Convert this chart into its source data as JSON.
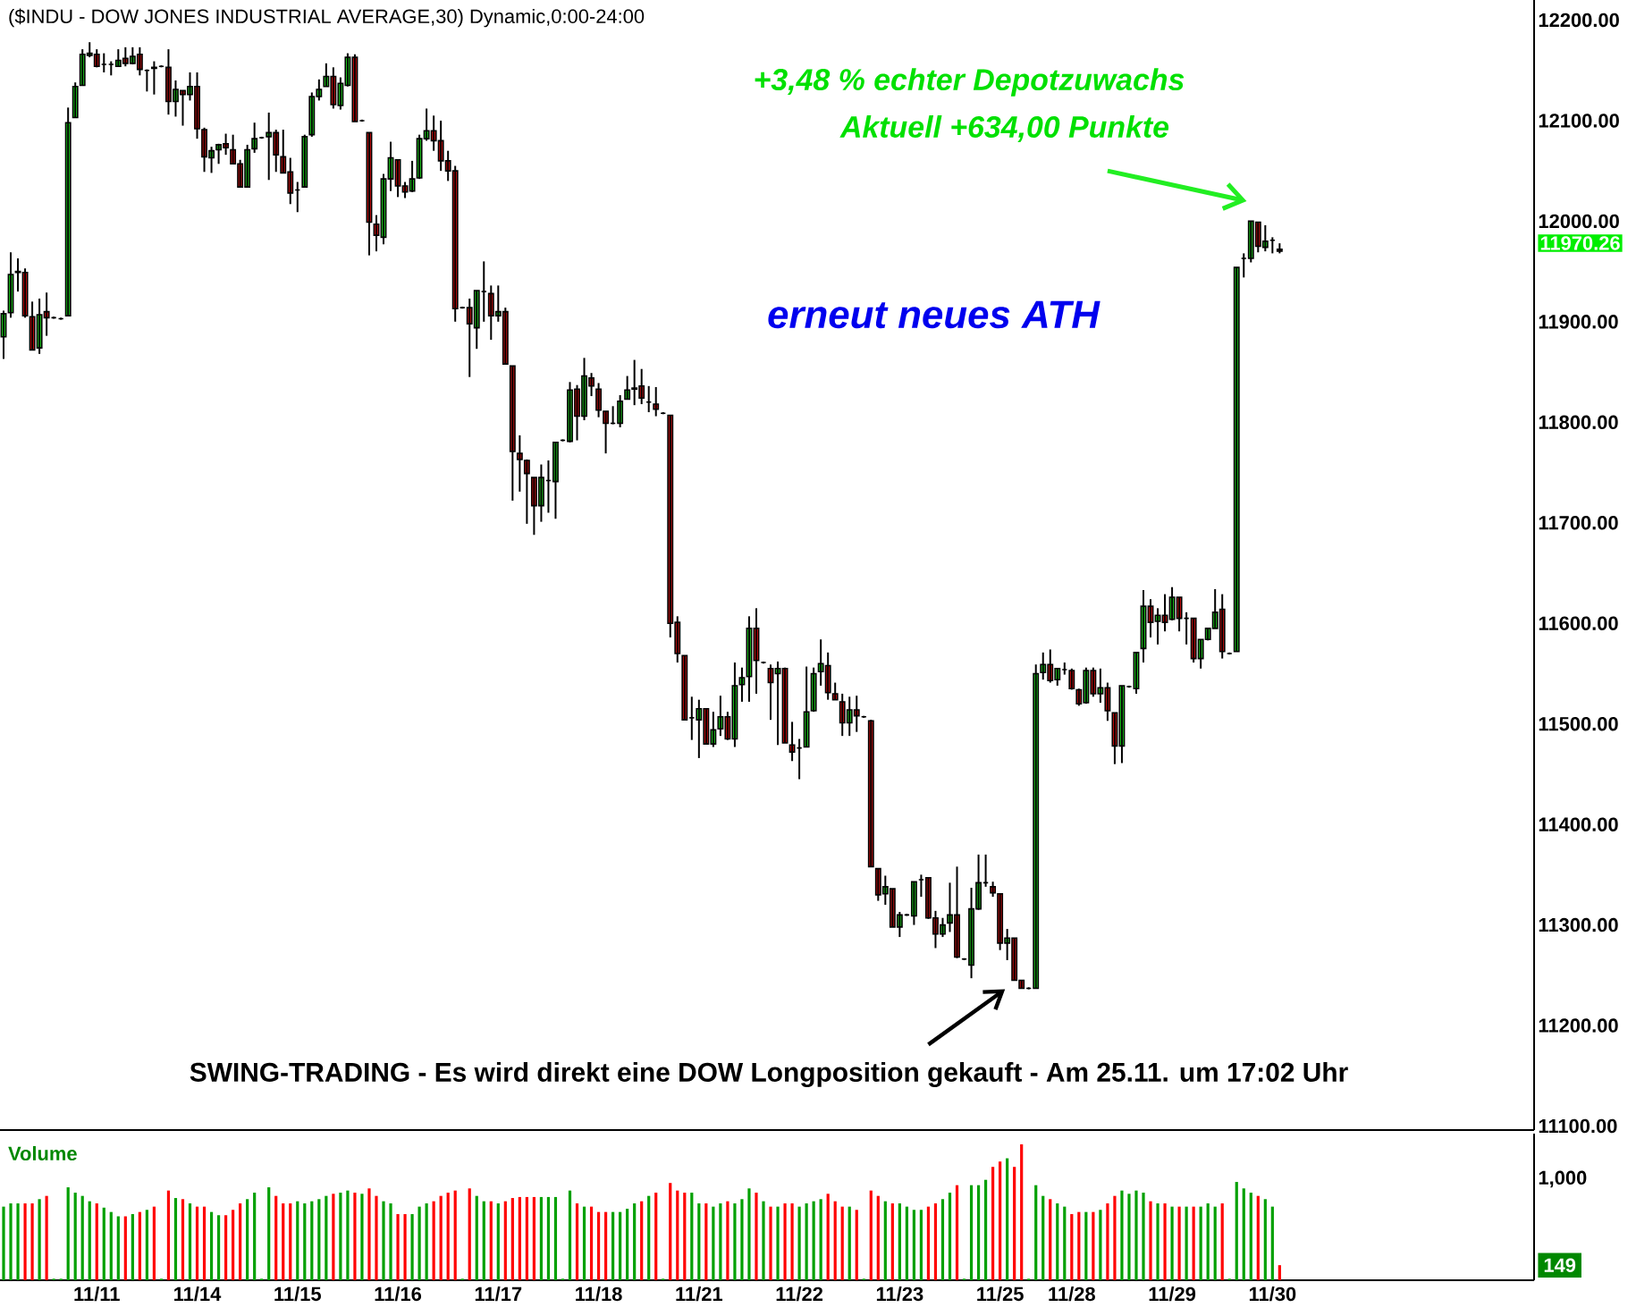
{
  "chart_data": [
    {
      "type": "candlestick",
      "title": "($INDU - DOW JONES INDUSTRIAL AVERAGE,30) Dynamic,0:00-24:00",
      "categories": [
        null,
        null,
        null,
        null,
        null,
        null,
        null,
        null,
        null,
        null,
        null,
        null,
        null,
        null,
        null,
        null,
        null,
        null,
        null,
        null,
        null,
        null,
        null,
        null,
        null,
        null,
        null,
        null,
        null,
        null,
        null,
        null,
        null,
        null,
        null,
        null,
        null,
        null,
        null,
        null,
        null,
        null,
        null,
        null,
        null,
        null,
        null,
        null,
        null,
        null,
        null,
        null,
        null,
        null,
        null,
        null,
        null,
        null,
        null,
        null,
        null,
        null,
        null,
        null,
        null,
        null,
        null,
        null,
        null,
        null,
        null,
        null,
        null,
        null,
        null,
        null,
        null,
        null,
        null,
        null,
        null,
        null,
        null,
        null,
        null,
        null,
        null,
        null,
        null,
        null,
        null,
        null,
        null,
        null,
        null,
        null,
        null,
        null,
        null,
        null,
        null,
        null,
        null,
        null,
        null,
        null,
        null,
        null,
        null,
        null,
        null,
        null,
        null,
        null,
        null,
        null,
        null,
        null,
        null,
        null,
        null,
        null,
        null,
        null,
        null,
        null,
        null,
        null,
        null,
        null,
        null,
        null,
        null,
        null,
        null,
        null,
        null,
        null,
        null,
        null,
        null,
        null,
        null,
        null,
        null,
        null,
        null,
        null,
        null,
        null,
        null,
        null,
        null,
        null,
        null,
        null,
        null,
        null,
        null,
        null,
        null,
        null,
        null,
        null,
        null,
        null,
        null,
        null,
        null,
        null,
        null,
        null,
        null,
        null,
        null,
        null,
        null,
        null,
        null,
        null,
        null,
        null,
        null,
        null,
        null,
        null,
        null,
        null,
        null,
        null,
        null,
        null,
        null,
        null,
        null,
        null,
        null,
        null,
        null,
        null,
        null,
        null,
        null,
        null,
        null,
        null,
        null,
        null,
        null,
        null,
        null,
        null,
        null,
        null
      ],
      "ohlc": [
        [
          11885,
          11911,
          11863,
          11908
        ],
        [
          11909,
          11969,
          11904,
          11947
        ],
        [
          11949,
          11963,
          11930,
          11950
        ],
        [
          11949,
          11953,
          11904,
          11906
        ],
        [
          11905,
          11920,
          11872,
          11872
        ],
        [
          11874,
          11923,
          11868,
          11907
        ],
        [
          11910,
          11929,
          11886,
          11904
        ],
        [
          11904,
          11905,
          11903,
          11904
        ],
        [
          11903,
          11904,
          11902,
          11903
        ],
        [
          11906,
          12113,
          11906,
          12098
        ],
        [
          12103,
          12138,
          12103,
          12134
        ],
        [
          12135,
          12171,
          12135,
          12166
        ],
        [
          12165,
          12178,
          12163,
          12167
        ],
        [
          12166,
          12171,
          12153,
          12154
        ],
        [
          12156,
          12167,
          12148,
          12156
        ],
        [
          12156,
          12159,
          12145,
          12156
        ],
        [
          12154,
          12171,
          12154,
          12160
        ],
        [
          12162,
          12173,
          12154,
          12157
        ],
        [
          12157,
          12173,
          12156,
          12164
        ],
        [
          12166,
          12173,
          12145,
          12151
        ],
        [
          12150,
          12151,
          12129,
          12150
        ],
        [
          12153,
          12159,
          12126,
          12152
        ],
        [
          12154,
          12155,
          12153,
          12154
        ],
        [
          12153,
          12171,
          12106,
          12119
        ],
        [
          12119,
          12140,
          12104,
          12131
        ],
        [
          12130,
          12130,
          12095,
          12126
        ],
        [
          12126,
          12148,
          12120,
          12134
        ],
        [
          12134,
          12148,
          12082,
          12092
        ],
        [
          12091,
          12093,
          12049,
          12064
        ],
        [
          12063,
          12074,
          12048,
          12070
        ],
        [
          12071,
          12077,
          12057,
          12076
        ],
        [
          12077,
          12087,
          12066,
          12073
        ],
        [
          12071,
          12086,
          12057,
          12057
        ],
        [
          12057,
          12061,
          12034,
          12034
        ],
        [
          12034,
          12076,
          12034,
          12071
        ],
        [
          12072,
          12098,
          12068,
          12082
        ],
        [
          12083,
          12084,
          12082,
          12083
        ],
        [
          12084,
          12108,
          12041,
          12088
        ],
        [
          12088,
          12091,
          12049,
          12066
        ],
        [
          12064,
          12091,
          12048,
          12048
        ],
        [
          12049,
          12063,
          12017,
          12028
        ],
        [
          12031,
          12039,
          12009,
          12031
        ],
        [
          12034,
          12086,
          12034,
          12084
        ],
        [
          12086,
          12128,
          12084,
          12124
        ],
        [
          12124,
          12141,
          12120,
          12131
        ],
        [
          12134,
          12157,
          12134,
          12144
        ],
        [
          12144,
          12153,
          12112,
          12116
        ],
        [
          12115,
          12143,
          12111,
          12137
        ],
        [
          12135,
          12167,
          12134,
          12163
        ],
        [
          12163,
          12166,
          12099,
          12099
        ],
        [
          12100,
          12101,
          12099,
          12100
        ],
        [
          12088,
          12088,
          11966,
          11999
        ],
        [
          11997,
          12006,
          11970,
          11986
        ],
        [
          11984,
          12047,
          11977,
          12042
        ],
        [
          12042,
          12079,
          12030,
          12063
        ],
        [
          12061,
          12061,
          12024,
          12035
        ],
        [
          12035,
          12039,
          12023,
          12029
        ],
        [
          12030,
          12060,
          12029,
          12042
        ],
        [
          12043,
          12086,
          12042,
          12082
        ],
        [
          12082,
          12112,
          12080,
          12090
        ],
        [
          12090,
          12105,
          12070,
          12080
        ],
        [
          12080,
          12100,
          12050,
          12060
        ],
        [
          12060,
          12070,
          12040,
          12050
        ],
        [
          12050,
          12055,
          11900,
          11913
        ],
        [
          11914,
          11915,
          11913,
          11914
        ],
        [
          11914,
          11923,
          11845,
          11898
        ],
        [
          11894,
          11931,
          11873,
          11931
        ],
        [
          11930,
          11960,
          11900,
          11930
        ],
        [
          11928,
          11936,
          11882,
          11906
        ],
        [
          11906,
          11936,
          11900,
          11910
        ],
        [
          11910,
          11914,
          11858,
          11858
        ],
        [
          11856,
          11856,
          11722,
          11771
        ],
        [
          11769,
          11787,
          11731,
          11763
        ],
        [
          11762,
          11763,
          11699,
          11749
        ],
        [
          11745,
          11745,
          11688,
          11717
        ],
        [
          11717,
          11758,
          11701,
          11745
        ],
        [
          11742,
          11762,
          11710,
          11742
        ],
        [
          11741,
          11780,
          11704,
          11780
        ],
        [
          11782,
          11783,
          11781,
          11782
        ],
        [
          11781,
          11840,
          11780,
          11832
        ],
        [
          11833,
          11837,
          11782,
          11806
        ],
        [
          11806,
          11864,
          11802,
          11846
        ],
        [
          11844,
          11849,
          11826,
          11836
        ],
        [
          11833,
          11839,
          11805,
          11812
        ],
        [
          11811,
          11811,
          11769,
          11799
        ],
        [
          11799,
          11816,
          11798,
          11799
        ],
        [
          11799,
          11827,
          11795,
          11821
        ],
        [
          11823,
          11846,
          11823,
          11832
        ],
        [
          11833,
          11862,
          11817,
          11834
        ],
        [
          11836,
          11853,
          11818,
          11824
        ],
        [
          11820,
          11836,
          11810,
          11820
        ],
        [
          11818,
          11835,
          11806,
          11813
        ],
        [
          11809,
          11810,
          11808,
          11809
        ],
        [
          11807,
          11807,
          11586,
          11600
        ],
        [
          11601,
          11607,
          11561,
          11570
        ],
        [
          11568,
          11568,
          11504,
          11504
        ],
        [
          11506,
          11527,
          11484,
          11506
        ],
        [
          11504,
          11524,
          11466,
          11515
        ],
        [
          11515,
          11515,
          11480,
          11480
        ],
        [
          11480,
          11512,
          11477,
          11494
        ],
        [
          11495,
          11528,
          11488,
          11507
        ],
        [
          11507,
          11512,
          11484,
          11485
        ],
        [
          11485,
          11561,
          11477,
          11538
        ],
        [
          11539,
          11556,
          11522,
          11546
        ],
        [
          11547,
          11607,
          11522,
          11595
        ],
        [
          11595,
          11615,
          11530,
          11563
        ],
        [
          11561,
          11562,
          11560,
          11561
        ],
        [
          11555,
          11559,
          11504,
          11541
        ],
        [
          11550,
          11562,
          11479,
          11555
        ],
        [
          11555,
          11556,
          11481,
          11481
        ],
        [
          11479,
          11502,
          11463,
          11472
        ],
        [
          11476,
          11485,
          11445,
          11476
        ],
        [
          11477,
          11557,
          11477,
          11512
        ],
        [
          11513,
          11556,
          11512,
          11550
        ],
        [
          11552,
          11584,
          11538,
          11560
        ],
        [
          11558,
          11571,
          11524,
          11531
        ],
        [
          11530,
          11541,
          11524,
          11524
        ],
        [
          11522,
          11530,
          11488,
          11501
        ],
        [
          11501,
          11527,
          11488,
          11514
        ],
        [
          11514,
          11528,
          11492,
          11508
        ],
        [
          11507,
          11508,
          11506,
          11507
        ],
        [
          11503,
          11504,
          11358,
          11358
        ],
        [
          11356,
          11356,
          11324,
          11330
        ],
        [
          11331,
          11349,
          11320,
          11338
        ],
        [
          11336,
          11336,
          11298,
          11298
        ],
        [
          11298,
          11313,
          11288,
          11310
        ],
        [
          11310,
          11311,
          11309,
          11310
        ],
        [
          11309,
          11343,
          11300,
          11343
        ],
        [
          11345,
          11350,
          11328,
          11345
        ],
        [
          11347,
          11347,
          11306,
          11307
        ],
        [
          11307,
          11314,
          11277,
          11291
        ],
        [
          11291,
          11307,
          11288,
          11300
        ],
        [
          11302,
          11342,
          11293,
          11310
        ],
        [
          11310,
          11358,
          11267,
          11268
        ],
        [
          11266,
          11267,
          11265,
          11266
        ],
        [
          11260,
          11337,
          11247,
          11316
        ],
        [
          11316,
          11370,
          11315,
          11342
        ],
        [
          11342,
          11370,
          11338,
          11342
        ],
        [
          11338,
          11343,
          11328,
          11332
        ],
        [
          11331,
          11331,
          11275,
          11282
        ],
        [
          11282,
          11296,
          11265,
          11287
        ],
        [
          11287,
          11287,
          11245,
          11245
        ],
        [
          11245,
          11245,
          11237,
          11237
        ],
        [
          11237,
          11238,
          11236,
          11237
        ],
        [
          11237,
          11559,
          11237,
          11550
        ],
        [
          11551,
          11571,
          11544,
          11559
        ],
        [
          11559,
          11574,
          11541,
          11543
        ],
        [
          11544,
          11555,
          11538,
          11555
        ],
        [
          11554,
          11561,
          11549,
          11554
        ],
        [
          11553,
          11555,
          11534,
          11535
        ],
        [
          11534,
          11535,
          11518,
          11520
        ],
        [
          11521,
          11556,
          11520,
          11553
        ],
        [
          11553,
          11556,
          11527,
          11530
        ],
        [
          11530,
          11555,
          11521,
          11536
        ],
        [
          11536,
          11541,
          11503,
          11513
        ],
        [
          11511,
          11511,
          11460,
          11478
        ],
        [
          11478,
          11538,
          11461,
          11538
        ],
        [
          11537,
          11538,
          11536,
          11537
        ],
        [
          11535,
          11571,
          11530,
          11571
        ],
        [
          11575,
          11633,
          11561,
          11617
        ],
        [
          11617,
          11624,
          11586,
          11601
        ],
        [
          11602,
          11615,
          11579,
          11608
        ],
        [
          11608,
          11629,
          11592,
          11601
        ],
        [
          11604,
          11636,
          11603,
          11626
        ],
        [
          11626,
          11626,
          11592,
          11605
        ],
        [
          11605,
          11611,
          11579,
          11605
        ],
        [
          11605,
          11605,
          11561,
          11565
        ],
        [
          11565,
          11584,
          11555,
          11584
        ],
        [
          11584,
          11595,
          11583,
          11595
        ],
        [
          11595,
          11634,
          11595,
          11611
        ],
        [
          11614,
          11629,
          11565,
          11572
        ],
        [
          11570,
          11571,
          11569,
          11570
        ],
        [
          11572,
          11954,
          11572,
          11954
        ],
        [
          11963,
          11968,
          11944,
          11963
        ],
        [
          11963,
          12000,
          11959,
          12000
        ],
        [
          11999,
          11999,
          11969,
          11975
        ],
        [
          11974,
          11996,
          11970,
          11980
        ],
        [
          11981,
          11984,
          11968,
          11981
        ],
        [
          11972,
          11978,
          11968,
          11970.26
        ],
        null,
        null,
        null,
        null,
        null,
        null,
        null,
        null,
        null,
        null,
        null,
        null,
        null,
        null,
        null,
        null,
        null,
        null,
        null,
        null,
        null,
        null,
        null,
        null,
        null,
        null,
        null,
        null,
        null,
        null,
        null,
        null,
        null,
        null,
        null
      ],
      "ylim": [
        11096,
        12220
      ],
      "yticks": [
        {
          "value": 11100,
          "label": "11100.00"
        },
        {
          "value": 11200,
          "label": "11200.00"
        },
        {
          "value": 11300,
          "label": "11300.00"
        },
        {
          "value": 11400,
          "label": "11400.00"
        },
        {
          "value": 11500,
          "label": "11500.00"
        },
        {
          "value": 11600,
          "label": "11600.00"
        },
        {
          "value": 11700,
          "label": "11700.00"
        },
        {
          "value": 11800,
          "label": "11800.00"
        },
        {
          "value": 11900,
          "label": "11900.00"
        },
        {
          "value": 12000,
          "label": "12000.00"
        },
        {
          "value": 12100,
          "label": "12100.00"
        },
        {
          "value": 12200,
          "label": "12200.00"
        }
      ],
      "tick_labels": "y",
      "annotations": [
        "+3,48 % echter Depotzuwachs",
        "Aktuell +634,00 Punkte",
        "erneut neues ATH",
        "SWING-TRADING - Es wird direkt eine DOW Longposition gekauft - Am 25.11. um 17:02 Uhr",
        "11970.26"
      ]
    },
    {
      "type": "bar",
      "categories": [
        null,
        null,
        null,
        null,
        null,
        null,
        null,
        null,
        null,
        null,
        null,
        null,
        null,
        "11/11",
        null,
        null,
        null,
        null,
        null,
        null,
        null,
        null,
        null,
        null,
        null,
        null,
        null,
        "11/14",
        null,
        null,
        null,
        null,
        null,
        null,
        null,
        null,
        null,
        null,
        null,
        null,
        null,
        "11/15",
        null,
        null,
        null,
        null,
        null,
        null,
        null,
        null,
        null,
        null,
        null,
        null,
        null,
        "11/16",
        null,
        null,
        null,
        null,
        null,
        null,
        null,
        null,
        null,
        null,
        null,
        null,
        null,
        "11/17",
        null,
        null,
        null,
        null,
        null,
        null,
        null,
        null,
        null,
        null,
        null,
        null,
        null,
        "11/18",
        null,
        null,
        null,
        null,
        null,
        null,
        null,
        null,
        null,
        null,
        null,
        null,
        null,
        "11/21",
        null,
        null,
        null,
        null,
        null,
        null,
        null,
        null,
        null,
        null,
        null,
        null,
        null,
        "11/22",
        null,
        null,
        null,
        null,
        null,
        null,
        null,
        null,
        null,
        null,
        null,
        null,
        null,
        "11/23",
        null,
        null,
        null,
        null,
        null,
        null,
        null,
        null,
        null,
        null,
        null,
        null,
        null,
        "11/25",
        null,
        null,
        null,
        null,
        null,
        null,
        null,
        null,
        null,
        "11/28",
        null,
        null,
        null,
        null,
        null,
        null,
        null,
        null,
        null,
        null,
        null,
        null,
        null,
        "11/29",
        null,
        null,
        null,
        null,
        null,
        null,
        null,
        null,
        null,
        null,
        null,
        null,
        null,
        "11/30",
        null,
        null,
        null,
        null,
        null,
        null,
        null,
        null,
        null,
        null,
        null,
        null,
        null,
        null,
        null,
        null,
        null,
        null,
        null,
        null,
        null,
        null,
        null,
        null,
        null,
        null,
        null,
        null,
        null,
        null,
        null,
        null,
        null,
        null,
        null,
        null
      ],
      "values": [
        728,
        760,
        760,
        760,
        760,
        802,
        834,
        15,
        15,
        919,
        866,
        834,
        781,
        760,
        718,
        675,
        632,
        632,
        654,
        675,
        696,
        728,
        15,
        887,
        813,
        802,
        760,
        728,
        728,
        675,
        643,
        643,
        696,
        760,
        802,
        866,
        15,
        919,
        834,
        760,
        760,
        781,
        760,
        781,
        802,
        834,
        855,
        866,
        887,
        866,
        855,
        908,
        834,
        781,
        760,
        654,
        654,
        654,
        728,
        760,
        781,
        834,
        866,
        887,
        15,
        908,
        834,
        781,
        781,
        760,
        781,
        813,
        823,
        823,
        823,
        823,
        823,
        823,
        15,
        887,
        760,
        728,
        728,
        675,
        675,
        675,
        675,
        707,
        760,
        781,
        834,
        866,
        15,
        962,
        887,
        866,
        866,
        760,
        760,
        728,
        760,
        781,
        760,
        802,
        908,
        866,
        781,
        728,
        728,
        760,
        760,
        728,
        760,
        781,
        802,
        855,
        781,
        728,
        728,
        696,
        15,
        887,
        834,
        781,
        760,
        760,
        728,
        696,
        696,
        728,
        760,
        802,
        866,
        940,
        15,
        940,
        940,
        993,
        1121,
        1174,
        1206,
        1121,
        1344,
        15,
        940,
        834,
        802,
        760,
        728,
        654,
        675,
        675,
        675,
        696,
        760,
        834,
        887,
        855,
        887,
        866,
        781,
        760,
        760,
        728,
        728,
        728,
        728,
        728,
        760,
        728,
        760,
        15,
        972,
        908,
        866,
        834,
        802,
        728,
        149,
        null,
        null,
        null,
        null,
        null,
        null,
        null,
        null,
        null,
        null,
        null,
        null,
        null,
        null,
        null,
        null,
        null,
        null,
        null,
        null,
        null,
        null,
        null,
        null,
        null,
        null,
        null,
        null,
        null,
        null,
        null,
        null,
        null,
        null,
        null
      ],
      "colors": [
        "#00a000",
        "#00a000",
        "#00a000",
        "#ff0000",
        "#ff0000",
        "#00a000",
        "#ff0000",
        "#00a000",
        "#00a000",
        "#00a000",
        "#00a000",
        "#00a000",
        "#00a000",
        "#ff0000",
        "#00a000",
        "#00a000",
        "#00a000",
        "#ff0000",
        "#00a000",
        "#ff0000",
        "#00a000",
        "#ff0000",
        "#00a000",
        "#ff0000",
        "#00a000",
        "#ff0000",
        "#00a000",
        "#ff0000",
        "#ff0000",
        "#00a000",
        "#00a000",
        "#ff0000",
        "#ff0000",
        "#ff0000",
        "#00a000",
        "#00a000",
        "#00a000",
        "#00a000",
        "#ff0000",
        "#ff0000",
        "#ff0000",
        "#00a000",
        "#00a000",
        "#00a000",
        "#00a000",
        "#00a000",
        "#ff0000",
        "#00a000",
        "#00a000",
        "#ff0000",
        "#00a000",
        "#ff0000",
        "#ff0000",
        "#00a000",
        "#00a000",
        "#ff0000",
        "#ff0000",
        "#00a000",
        "#00a000",
        "#00a000",
        "#ff0000",
        "#ff0000",
        "#ff0000",
        "#ff0000",
        "#00a000",
        "#ff0000",
        "#00a000",
        "#00a000",
        "#ff0000",
        "#00a000",
        "#ff0000",
        "#ff0000",
        "#ff0000",
        "#ff0000",
        "#ff0000",
        "#00a000",
        "#00a000",
        "#00a000",
        "#00a000",
        "#00a000",
        "#ff0000",
        "#00a000",
        "#ff0000",
        "#ff0000",
        "#ff0000",
        "#00a000",
        "#00a000",
        "#00a000",
        "#00a000",
        "#ff0000",
        "#00a000",
        "#ff0000",
        "#00a000",
        "#ff0000",
        "#ff0000",
        "#ff0000",
        "#00a000",
        "#00a000",
        "#ff0000",
        "#00a000",
        "#00a000",
        "#ff0000",
        "#00a000",
        "#00a000",
        "#00a000",
        "#ff0000",
        "#00a000",
        "#ff0000",
        "#00a000",
        "#ff0000",
        "#ff0000",
        "#00a000",
        "#00a000",
        "#00a000",
        "#00a000",
        "#ff0000",
        "#ff0000",
        "#ff0000",
        "#00a000",
        "#ff0000",
        "#00a000",
        "#ff0000",
        "#ff0000",
        "#00a000",
        "#ff0000",
        "#00a000",
        "#00a000",
        "#00a000",
        "#00a000",
        "#ff0000",
        "#ff0000",
        "#00a000",
        "#00a000",
        "#ff0000",
        "#00a000",
        "#00a000",
        "#00a000",
        "#00a000",
        "#ff0000",
        "#ff0000",
        "#00a000",
        "#ff0000",
        "#ff0000",
        "#00a000",
        "#00a000",
        "#00a000",
        "#ff0000",
        "#00a000",
        "#00a000",
        "#ff0000",
        "#ff0000",
        "#00a000",
        "#ff0000",
        "#00a000",
        "#ff0000",
        "#ff0000",
        "#00a000",
        "#00a000",
        "#00a000",
        "#00a000",
        "#ff0000",
        "#00a000",
        "#ff0000",
        "#00a000",
        "#ff0000",
        "#00a000",
        "#ff0000",
        "#00a000",
        "#00a000",
        "#00a000",
        "#ff0000",
        "#00a000",
        "#00a000",
        "#00a000",
        "#00a000",
        "#ff0000",
        "#00a000",
        "#00a000",
        "#ff0000",
        null,
        null,
        null,
        null,
        null,
        null,
        null,
        null,
        null,
        null,
        null,
        null,
        null,
        null,
        null,
        null,
        null,
        null,
        null,
        null,
        null,
        null,
        null,
        null,
        null,
        null,
        null,
        null,
        null,
        null,
        null,
        null,
        null,
        null,
        null
      ],
      "ylim": [
        0,
        1450
      ],
      "yticks": [
        {
          "value": 149,
          "label": "149"
        },
        {
          "value": 1000,
          "label": "1,000"
        }
      ],
      "annotations": [
        "Volume"
      ]
    }
  ]
}
